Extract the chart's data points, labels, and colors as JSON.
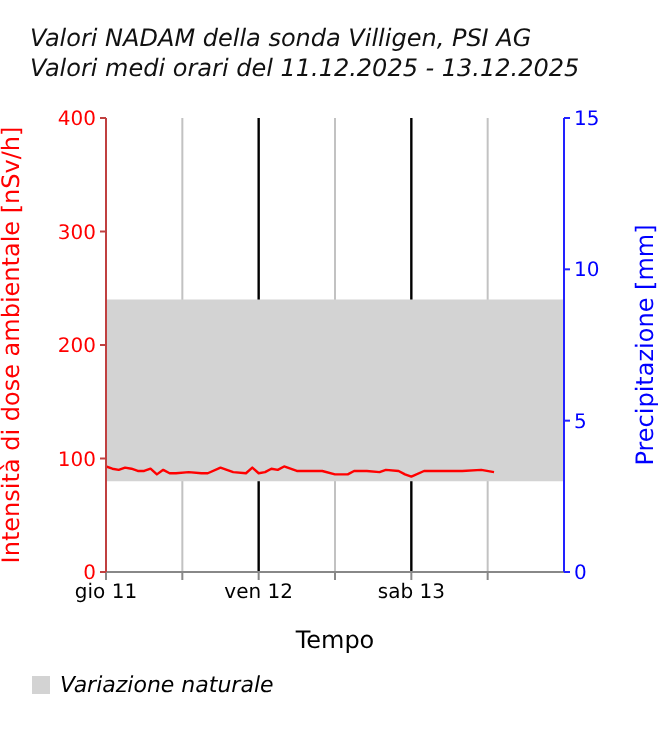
{
  "chart_data": {
    "type": "line",
    "title": "Valori NADAM della sonda Villigen, PSI AG",
    "subtitle": "Valori medi orari del 11.12.2025 - 13.12.2025",
    "xlabel": "Tempo",
    "ylabel": "Intensità di dose ambientale [nSv/h]",
    "y2label": "Precipitazione [mm]",
    "x": [
      "2025-12-11T00:00",
      "2025-12-11T01:00",
      "2025-12-11T02:00",
      "2025-12-11T03:00",
      "2025-12-11T04:00",
      "2025-12-11T05:00",
      "2025-12-11T06:00",
      "2025-12-11T07:00",
      "2025-12-11T08:00",
      "2025-12-11T09:00",
      "2025-12-11T10:00",
      "2025-12-11T11:00",
      "2025-12-11T13:00",
      "2025-12-11T15:00",
      "2025-12-11T16:00",
      "2025-12-11T18:00",
      "2025-12-11T20:00",
      "2025-12-11T22:00",
      "2025-12-11T23:00",
      "2025-12-12T00:00",
      "2025-12-12T01:00",
      "2025-12-12T02:00",
      "2025-12-12T03:00",
      "2025-12-12T04:00",
      "2025-12-12T06:00",
      "2025-12-12T08:00",
      "2025-12-12T10:00",
      "2025-12-12T12:00",
      "2025-12-12T14:00",
      "2025-12-12T15:00",
      "2025-12-12T17:00",
      "2025-12-12T19:00",
      "2025-12-12T20:00",
      "2025-12-12T22:00",
      "2025-12-12T23:00",
      "2025-12-13T00:00",
      "2025-12-13T02:00",
      "2025-12-13T05:00",
      "2025-12-13T08:00",
      "2025-12-13T11:00",
      "2025-12-13T13:00"
    ],
    "series": [
      {
        "color": "#ff0000",
        "values": [
          93,
          91,
          90,
          92,
          91,
          89,
          89,
          91,
          86,
          90,
          87,
          87,
          88,
          87,
          87,
          92,
          88,
          87,
          92,
          87,
          88,
          91,
          90,
          93,
          89,
          89,
          89,
          86,
          86,
          89,
          89,
          88,
          90,
          89,
          86,
          84,
          89,
          89,
          89,
          90,
          88
        ]
      }
    ],
    "xlim": [
      "2025-12-11",
      "2025-12-14"
    ],
    "xticks": [
      {
        "value": "2025-12-11",
        "label": "gio 11"
      },
      {
        "value": "2025-12-11T12:00",
        "label": null
      },
      {
        "value": "2025-12-12",
        "label": "ven 12"
      },
      {
        "value": "2025-12-12T12:00",
        "label": null
      },
      {
        "value": "2025-12-13",
        "label": "sab 13"
      },
      {
        "value": "2025-12-13T12:00",
        "label": null
      }
    ],
    "ylim": [
      0,
      400
    ],
    "yticks": [
      0,
      100,
      200,
      300,
      400
    ],
    "y2lim": [
      0,
      15
    ],
    "y2ticks": [
      0,
      5,
      10,
      15
    ],
    "bands": [
      {
        "axis": "y",
        "from": 80,
        "to": 240,
        "label": "Variazione naturale",
        "color": "#d3d3d3"
      }
    ],
    "grid": "x",
    "legend": "bottom",
    "marker": "none",
    "line_style": "solid"
  }
}
